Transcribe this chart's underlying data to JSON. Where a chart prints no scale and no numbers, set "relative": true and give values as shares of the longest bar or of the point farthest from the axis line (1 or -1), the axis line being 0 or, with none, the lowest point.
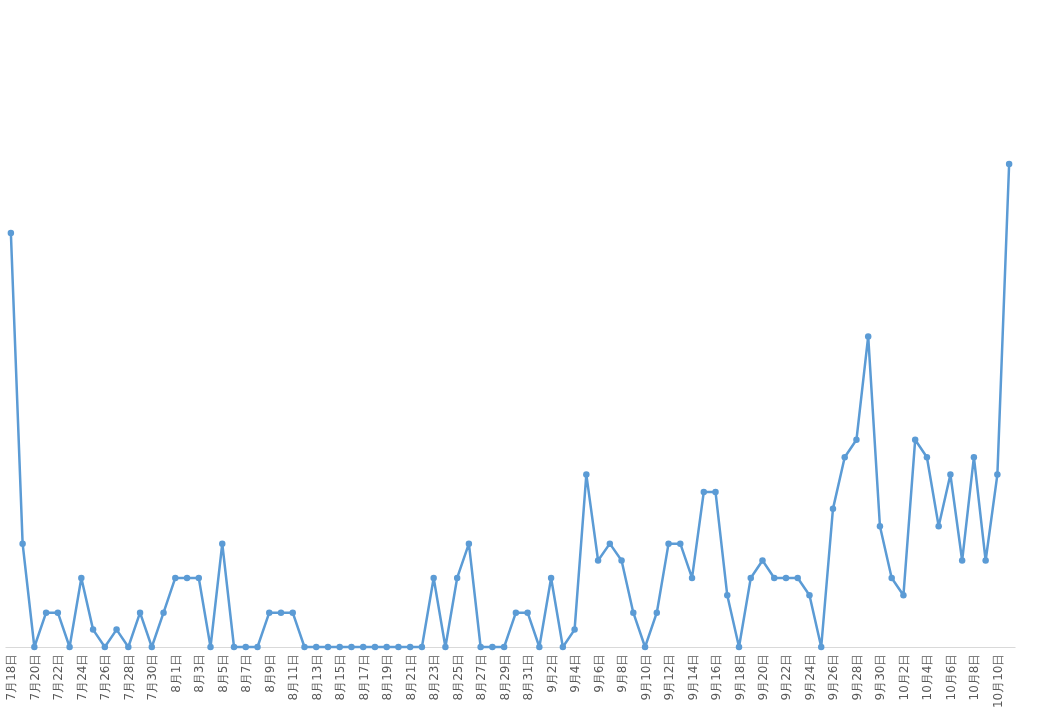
{
  "chart_data": {
    "type": "line",
    "relative": true,
    "marker": "circle",
    "line_style": "solid",
    "categories": [
      "7月18日",
      null,
      "7月20日",
      null,
      "7月22日",
      null,
      "7月24日",
      null,
      "7月26日",
      null,
      "7月28日",
      null,
      "7月30日",
      null,
      "8月1日",
      null,
      "8月3日",
      null,
      "8月5日",
      null,
      "8月7日",
      null,
      "8月9日",
      null,
      "8月11日",
      null,
      "8月13日",
      null,
      "8月15日",
      null,
      "8月17日",
      null,
      "8月19日",
      null,
      "8月21日",
      null,
      "8月23日",
      null,
      "8月25日",
      null,
      "8月27日",
      null,
      "8月29日",
      null,
      "8月31日",
      null,
      "9月2日",
      null,
      "9月4日",
      null,
      "9月6日",
      null,
      "9月8日",
      null,
      "9月10日",
      null,
      "9月12日",
      null,
      "9月14日",
      null,
      "9月16日",
      null,
      "9月18日",
      null,
      "9月20日",
      null,
      "9月22日",
      null,
      "9月24日",
      null,
      "9月26日",
      null,
      "9月28日",
      null,
      "9月30日",
      null,
      "10月2日",
      null,
      "10月4日",
      null,
      "10月6日",
      null,
      "10月8日",
      null,
      "10月10日",
      null
    ],
    "series": [
      {
        "color": "#5b9bd5",
        "values": [
          0.857,
          0.214,
          0,
          0.071,
          0.071,
          0,
          0.143,
          0.036,
          0,
          0.036,
          0,
          0.071,
          0,
          0.071,
          0.143,
          0.143,
          0.143,
          0,
          0.214,
          0,
          0,
          0,
          0.071,
          0.071,
          0.071,
          0,
          0,
          0,
          0,
          0,
          0,
          0,
          0,
          0,
          0,
          0,
          0.143,
          0,
          0.143,
          0.214,
          0,
          0,
          0,
          0.071,
          0.071,
          0,
          0.143,
          0,
          0.036,
          0.357,
          0.179,
          0.214,
          0.179,
          0.071,
          0,
          0.071,
          0.214,
          0.214,
          0.143,
          0.321,
          0.321,
          0.107,
          0,
          0.143,
          0.179,
          0.143,
          0.143,
          0.143,
          0.107,
          0,
          0.286,
          0.393,
          0.429,
          0.643,
          0.25,
          0.143,
          0.107,
          0.429,
          0.393,
          0.25,
          0.357,
          0.179,
          0.393,
          0.179,
          0.357,
          1
        ]
      }
    ]
  }
}
